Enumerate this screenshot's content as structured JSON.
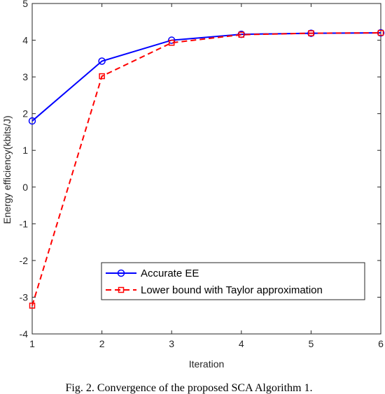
{
  "chart_data": {
    "type": "line",
    "title": "",
    "xlabel": "Iteration",
    "ylabel": "Energy efficiency(kbits/J)",
    "xlim": [
      1,
      6
    ],
    "ylim": [
      -4,
      5
    ],
    "xticks": [
      1,
      2,
      3,
      4,
      5,
      6
    ],
    "yticks": [
      -4,
      -3,
      -2,
      -1,
      0,
      1,
      2,
      3,
      4,
      5
    ],
    "grid": false,
    "legend_position": "bottom-right",
    "x": [
      1,
      2,
      3,
      4,
      5,
      6
    ],
    "series": [
      {
        "name": "Accurate EE",
        "values": [
          1.8,
          3.43,
          4.0,
          4.16,
          4.19,
          4.2
        ],
        "color": "#0000ff",
        "marker": "circle",
        "line": "solid"
      },
      {
        "name": "Lower bound with Taylor approximation",
        "values": [
          -3.23,
          3.02,
          3.93,
          4.15,
          4.19,
          4.2
        ],
        "color": "#ff0000",
        "marker": "square",
        "line": "dashed"
      }
    ]
  },
  "caption": "Fig. 2.  Convergence of the proposed SCA Algorithm 1."
}
